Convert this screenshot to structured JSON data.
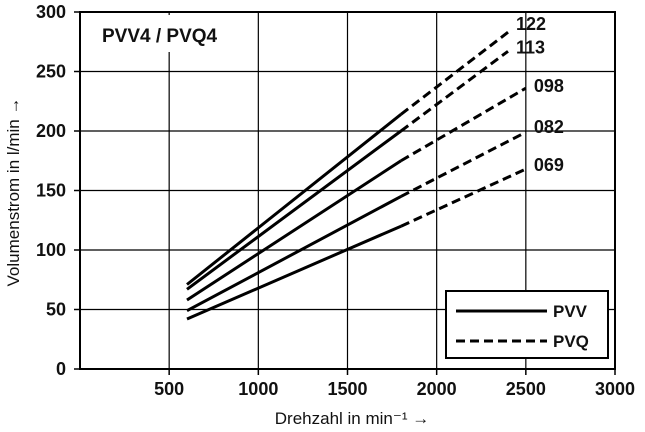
{
  "chart_data": {
    "type": "line",
    "title": "PVV4 / PVQ4",
    "xlabel": "Drehzahl in min⁻¹ →",
    "ylabel": "Volumenstrom in l/min →",
    "xlim": [
      0,
      3000
    ],
    "ylim": [
      0,
      300
    ],
    "x_ticks": [
      "500",
      "1000",
      "1500",
      "2000",
      "2500",
      "3000"
    ],
    "y_ticks": [
      "0",
      "50",
      "100",
      "150",
      "200",
      "250",
      "300"
    ],
    "grid": true,
    "legend_position": "bottom-right",
    "legend": [
      {
        "label": "PVV",
        "style": "solid"
      },
      {
        "label": "PVQ",
        "style": "dashed"
      }
    ],
    "series": [
      {
        "name": "122",
        "solid": [
          [
            600,
            71
          ],
          [
            1800,
            214
          ]
        ],
        "dashed": [
          [
            1800,
            214
          ],
          [
            2400,
            283
          ]
        ]
      },
      {
        "name": "113",
        "solid": [
          [
            600,
            67
          ],
          [
            1800,
            200
          ]
        ],
        "dashed": [
          [
            1800,
            200
          ],
          [
            2400,
            267
          ]
        ]
      },
      {
        "name": "098",
        "solid": [
          [
            600,
            58
          ],
          [
            1800,
            175
          ]
        ],
        "dashed": [
          [
            1800,
            175
          ],
          [
            2500,
            236
          ]
        ]
      },
      {
        "name": "082",
        "solid": [
          [
            600,
            49
          ],
          [
            1800,
            145
          ]
        ],
        "dashed": [
          [
            1800,
            145
          ],
          [
            2500,
            199
          ]
        ]
      },
      {
        "name": "069",
        "solid": [
          [
            600,
            42
          ],
          [
            1800,
            120
          ]
        ],
        "dashed": [
          [
            1800,
            120
          ],
          [
            2500,
            168
          ]
        ]
      }
    ]
  }
}
